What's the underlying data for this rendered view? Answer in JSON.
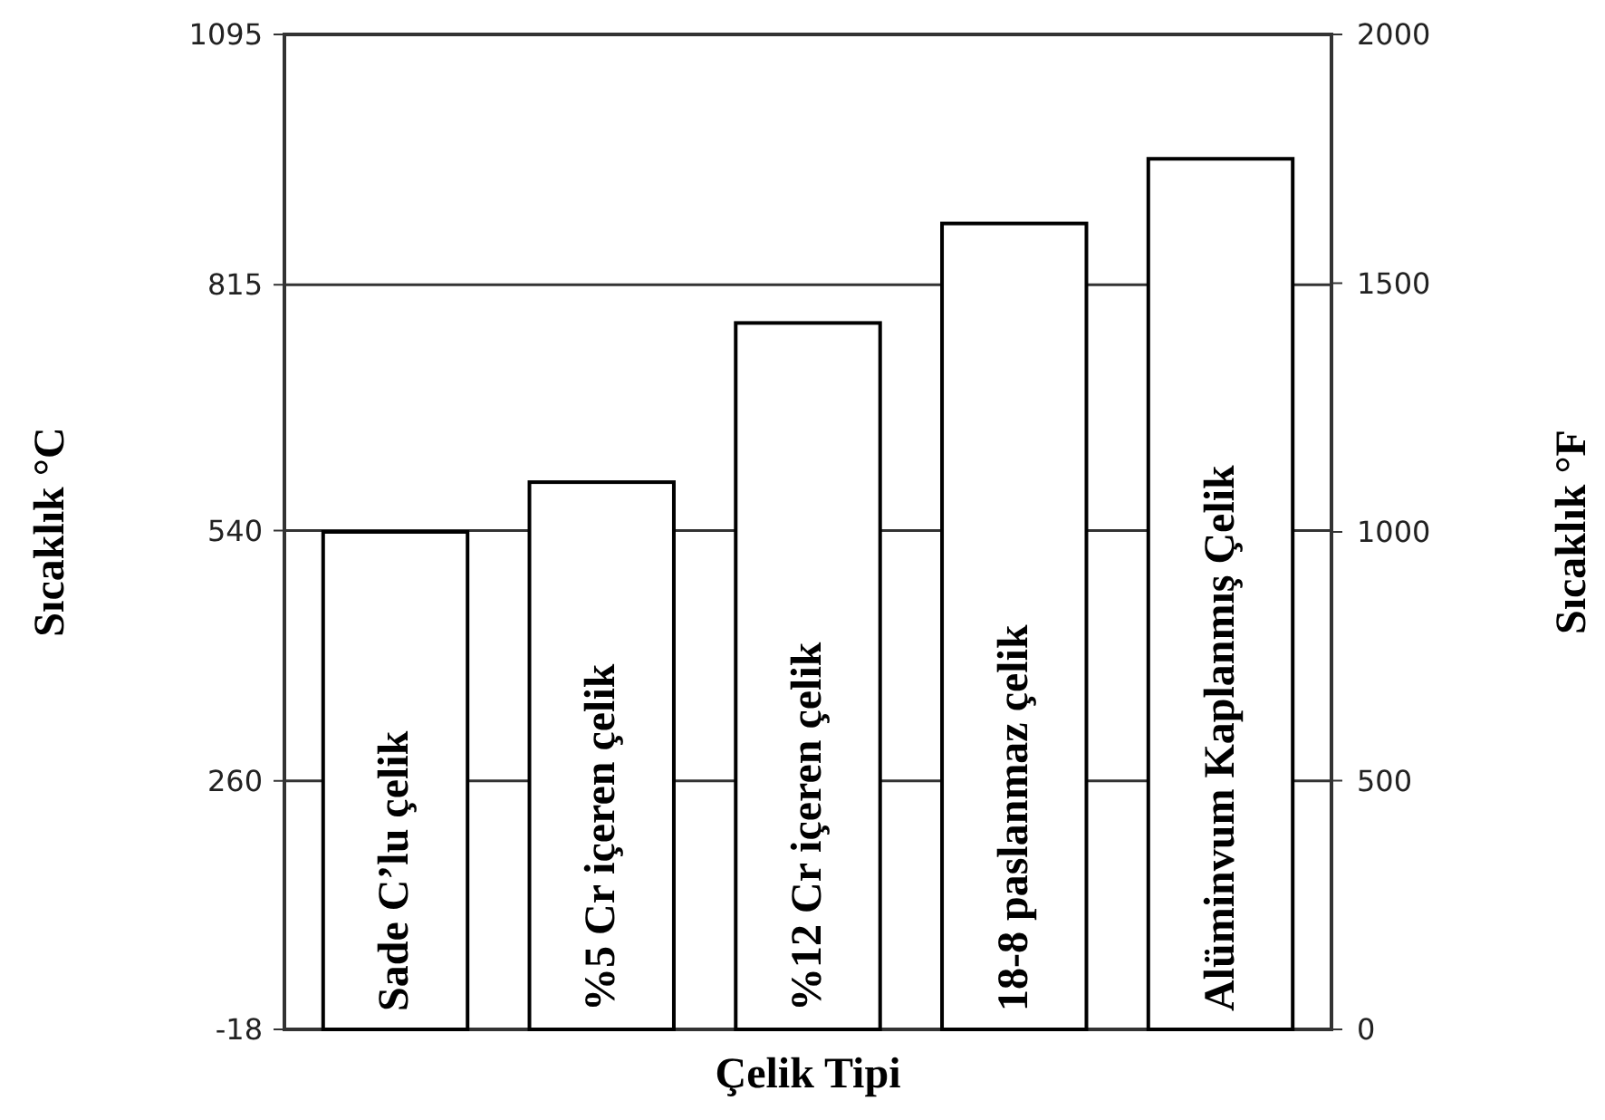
{
  "chart_data": {
    "type": "bar",
    "xlabel": "Çelik Tipi",
    "ylabel": "Sıcaklık °C",
    "y2label": "Sıcaklık °F",
    "categories": [
      "Sade C’lu çelik",
      "%5 Cr içeren çelik",
      "%12 Cr içeren çelik",
      "18-8 paslanmaz çelik",
      "Alüminvum Kaplanmış Çelik"
    ],
    "series": [
      {
        "color": "#ffffff",
        "axis": "y2",
        "values": [
          1000,
          1100,
          1420,
          1620,
          1750
        ]
      }
    ],
    "ylim": [
      -18,
      1095
    ],
    "yticks": [
      -18,
      260,
      540,
      815,
      1095
    ],
    "y2lim": [
      0,
      2000
    ],
    "y2ticks": [
      0,
      500,
      1000,
      1500,
      2000
    ],
    "grid": "y"
  }
}
